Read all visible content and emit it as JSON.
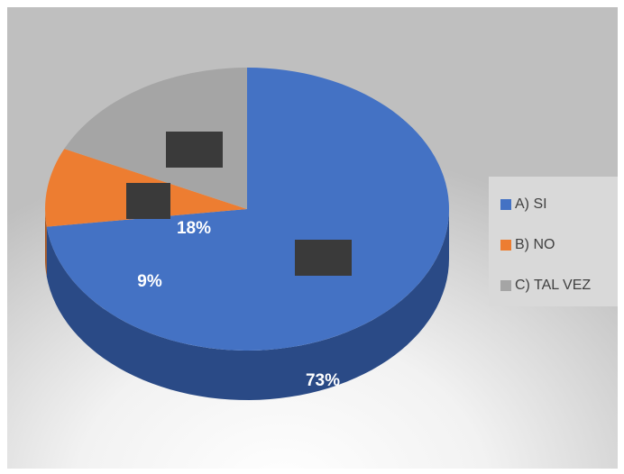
{
  "chart_data": {
    "type": "pie",
    "categories": [
      "A) SI",
      "B) NO",
      "C) TAL VEZ"
    ],
    "values": [
      73,
      9,
      18
    ],
    "value_labels": [
      "73%",
      "9%",
      "18%"
    ],
    "colors": [
      "#4472c4",
      "#ed7d31",
      "#a5a5a5"
    ],
    "side_colors": [
      "#2a4a86",
      "#a8541c",
      "#6e6e6e"
    ],
    "legend": "right"
  }
}
